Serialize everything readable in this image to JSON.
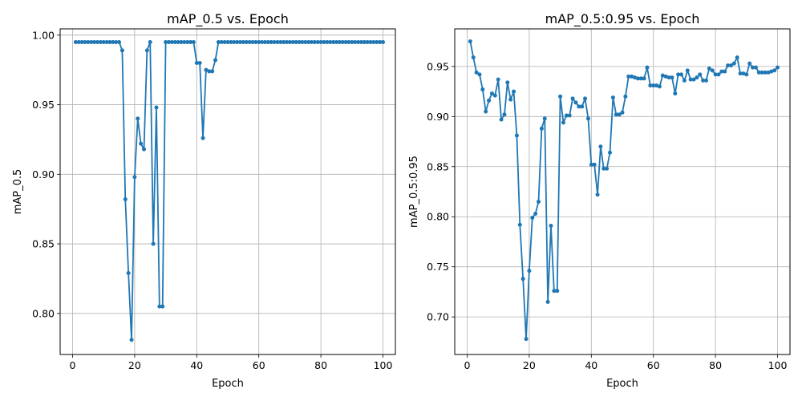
{
  "figure": {
    "colors": {
      "series": "#1f77b4",
      "grid": "#b0b0b0",
      "background": "#ffffff"
    }
  },
  "chart_data": [
    {
      "type": "line",
      "title": "mAP_0.5 vs. Epoch",
      "xlabel": "Epoch",
      "ylabel": "mAP_0.5",
      "xlim": [
        -4,
        104
      ],
      "ylim": [
        0.7705,
        1.0045
      ],
      "xticks": [
        0,
        20,
        40,
        60,
        80,
        100
      ],
      "xtick_labels": [
        "0",
        "20",
        "40",
        "60",
        "80",
        "100"
      ],
      "yticks": [
        0.8,
        0.85,
        0.9,
        0.95,
        1.0
      ],
      "ytick_labels": [
        "0.80",
        "0.85",
        "0.90",
        "0.95",
        "1.00"
      ],
      "grid": true,
      "marker": "circle",
      "series": [
        {
          "x": [
            1,
            2,
            3,
            4,
            5,
            6,
            7,
            8,
            9,
            10,
            11,
            12,
            13,
            14,
            15,
            16,
            17,
            18,
            19,
            20,
            21,
            22,
            23,
            24,
            25,
            26,
            27,
            28,
            29,
            30,
            31,
            32,
            33,
            34,
            35,
            36,
            37,
            38,
            39,
            40,
            41,
            42,
            43,
            44,
            45,
            46,
            47,
            48,
            49,
            50,
            51,
            52,
            53,
            54,
            55,
            56,
            57,
            58,
            59,
            60,
            61,
            62,
            63,
            64,
            65,
            66,
            67,
            68,
            69,
            70,
            71,
            72,
            73,
            74,
            75,
            76,
            77,
            78,
            79,
            80,
            81,
            82,
            83,
            84,
            85,
            86,
            87,
            88,
            89,
            90,
            91,
            92,
            93,
            94,
            95,
            96,
            97,
            98,
            99,
            100
          ],
          "values": [
            0.995,
            0.995,
            0.995,
            0.995,
            0.995,
            0.995,
            0.995,
            0.995,
            0.995,
            0.995,
            0.995,
            0.995,
            0.995,
            0.995,
            0.995,
            0.989,
            0.882,
            0.829,
            0.781,
            0.898,
            0.94,
            0.922,
            0.918,
            0.989,
            0.995,
            0.85,
            0.948,
            0.805,
            0.805,
            0.995,
            0.995,
            0.995,
            0.995,
            0.995,
            0.995,
            0.995,
            0.995,
            0.995,
            0.995,
            0.98,
            0.98,
            0.926,
            0.975,
            0.974,
            0.974,
            0.982,
            0.995,
            0.995,
            0.995,
            0.995,
            0.995,
            0.995,
            0.995,
            0.995,
            0.995,
            0.995,
            0.995,
            0.995,
            0.995,
            0.995,
            0.995,
            0.995,
            0.995,
            0.995,
            0.995,
            0.995,
            0.995,
            0.995,
            0.995,
            0.995,
            0.995,
            0.995,
            0.995,
            0.995,
            0.995,
            0.995,
            0.995,
            0.995,
            0.995,
            0.995,
            0.995,
            0.995,
            0.995,
            0.995,
            0.995,
            0.995,
            0.995,
            0.995,
            0.995,
            0.995,
            0.995,
            0.995,
            0.995,
            0.995,
            0.995,
            0.995,
            0.995,
            0.995,
            0.995,
            0.995
          ]
        }
      ]
    },
    {
      "type": "line",
      "title": "mAP_0.5:0.95 vs. Epoch",
      "xlabel": "Epoch",
      "ylabel": "mAP_0.5:0.95",
      "xlim": [
        -4,
        104
      ],
      "ylim": [
        0.6625,
        0.9875
      ],
      "xticks": [
        0,
        20,
        40,
        60,
        80,
        100
      ],
      "xtick_labels": [
        "0",
        "20",
        "40",
        "60",
        "80",
        "100"
      ],
      "yticks": [
        0.7,
        0.75,
        0.8,
        0.85,
        0.9,
        0.95
      ],
      "ytick_labels": [
        "0.70",
        "0.75",
        "0.80",
        "0.85",
        "0.90",
        "0.95"
      ],
      "grid": true,
      "marker": "circle",
      "series": [
        {
          "x": [
            1,
            2,
            3,
            4,
            5,
            6,
            7,
            8,
            9,
            10,
            11,
            12,
            13,
            14,
            15,
            16,
            17,
            18,
            19,
            20,
            21,
            22,
            23,
            24,
            25,
            26,
            27,
            28,
            29,
            30,
            31,
            32,
            33,
            34,
            35,
            36,
            37,
            38,
            39,
            40,
            41,
            42,
            43,
            44,
            45,
            46,
            47,
            48,
            49,
            50,
            51,
            52,
            53,
            54,
            55,
            56,
            57,
            58,
            59,
            60,
            61,
            62,
            63,
            64,
            65,
            66,
            67,
            68,
            69,
            70,
            71,
            72,
            73,
            74,
            75,
            76,
            77,
            78,
            79,
            80,
            81,
            82,
            83,
            84,
            85,
            86,
            87,
            88,
            89,
            90,
            91,
            92,
            93,
            94,
            95,
            96,
            97,
            98,
            99,
            100
          ],
          "values": [
            0.975,
            0.959,
            0.944,
            0.942,
            0.927,
            0.905,
            0.916,
            0.923,
            0.921,
            0.937,
            0.897,
            0.902,
            0.934,
            0.917,
            0.925,
            0.881,
            0.792,
            0.738,
            0.678,
            0.746,
            0.799,
            0.803,
            0.815,
            0.888,
            0.898,
            0.715,
            0.791,
            0.726,
            0.726,
            0.92,
            0.894,
            0.901,
            0.901,
            0.918,
            0.914,
            0.91,
            0.91,
            0.918,
            0.898,
            0.852,
            0.852,
            0.822,
            0.87,
            0.848,
            0.848,
            0.864,
            0.919,
            0.902,
            0.902,
            0.904,
            0.92,
            0.94,
            0.94,
            0.939,
            0.938,
            0.938,
            0.938,
            0.949,
            0.931,
            0.931,
            0.931,
            0.93,
            0.941,
            0.94,
            0.939,
            0.939,
            0.923,
            0.942,
            0.942,
            0.936,
            0.946,
            0.937,
            0.937,
            0.939,
            0.942,
            0.936,
            0.936,
            0.948,
            0.946,
            0.942,
            0.942,
            0.945,
            0.945,
            0.951,
            0.951,
            0.953,
            0.959,
            0.943,
            0.943,
            0.942,
            0.953,
            0.949,
            0.949,
            0.944,
            0.944,
            0.944,
            0.944,
            0.945,
            0.946,
            0.949
          ]
        }
      ]
    }
  ]
}
